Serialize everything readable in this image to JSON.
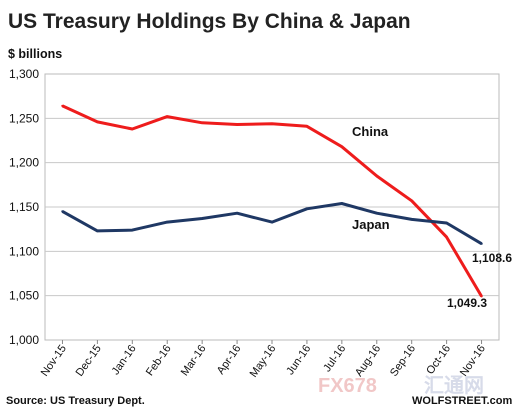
{
  "chart_data": {
    "type": "line",
    "title": "US Treasury Holdings By China & Japan",
    "ylabel": "$ billions",
    "ylim": [
      1000,
      1300
    ],
    "yticks": [
      "1,000",
      "1,050",
      "1,100",
      "1,150",
      "1,200",
      "1,250",
      "1,300"
    ],
    "ytick_values": [
      1000,
      1050,
      1100,
      1150,
      1200,
      1250,
      1300
    ],
    "grid": "horizontal",
    "categories": [
      "Nov-15",
      "Dec-15",
      "Jan-16",
      "Feb-16",
      "Mar-16",
      "Apr-16",
      "May-16",
      "Jun-16",
      "Jul-16",
      "Aug-16",
      "Sep-16",
      "Oct-16",
      "Nov-16"
    ],
    "series": [
      {
        "name": "China",
        "color": "#ee1c1c",
        "values": [
          1264,
          1246,
          1238,
          1252,
          1245,
          1243,
          1244,
          1241,
          1218,
          1185,
          1157,
          1116,
          1049.3
        ]
      },
      {
        "name": "Japan",
        "color": "#1f3864",
        "values": [
          1145,
          1123,
          1124,
          1133,
          1137,
          1143,
          1133,
          1148,
          1154,
          1143,
          1136,
          1132,
          1108.6
        ]
      }
    ],
    "data_labels": [
      "1,108.6",
      "1,049.3"
    ]
  },
  "source": "Source: US Treasury Dept.",
  "credit": "WOLFSTREET.com",
  "watermark": {
    "a": "FX678",
    "b": "汇通网"
  }
}
